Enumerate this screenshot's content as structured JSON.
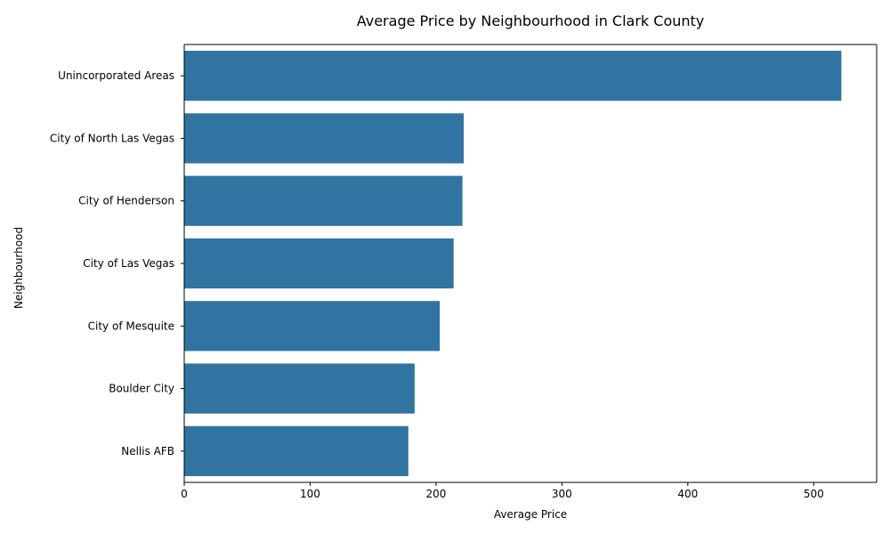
{
  "chart_data": {
    "type": "bar",
    "orientation": "horizontal",
    "title": "Average Price by Neighbourhood in Clark County",
    "xlabel": "Average Price",
    "ylabel": "Neighbourhood",
    "categories": [
      "Unincorporated Areas",
      "City of North Las Vegas",
      "City of Henderson",
      "City of Las Vegas",
      "City of Mesquite",
      "Boulder City",
      "Nellis AFB"
    ],
    "values": [
      522,
      222,
      221,
      214,
      203,
      183,
      178
    ],
    "xlim": [
      0,
      550
    ],
    "xticks": [
      0,
      100,
      200,
      300,
      400,
      500
    ],
    "grid": false,
    "bar_color": "#3274a1"
  }
}
